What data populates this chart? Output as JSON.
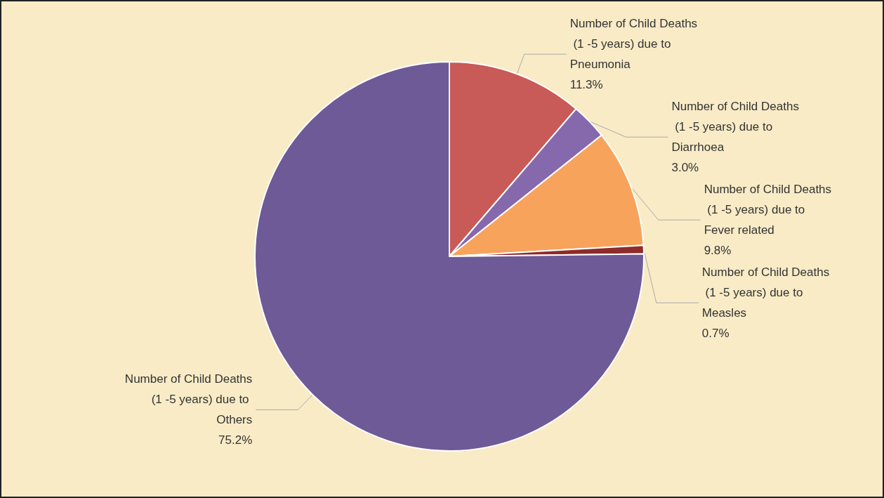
{
  "chart_data": {
    "type": "pie",
    "categories": [
      "Number of Child Deaths (1 -5 years) due to Pneumonia",
      "Number of Child Deaths (1 -5 years) due to Diarrhoea",
      "Number of Child Deaths (1 -5 years) due to Fever related",
      "Number of Child Deaths (1 -5 years) due to Measles",
      "Number of Child Deaths (1 -5 years) due to Others"
    ],
    "values": [
      11.3,
      3.0,
      9.8,
      0.7,
      75.2
    ],
    "colors": [
      "#c85a57",
      "#8668ad",
      "#f7a35c",
      "#8e2b2b",
      "#6e5a96"
    ],
    "value_labels": [
      "11.3%",
      "3.0%",
      "9.8%",
      "0.7%",
      "75.2%"
    ],
    "legend": false
  }
}
